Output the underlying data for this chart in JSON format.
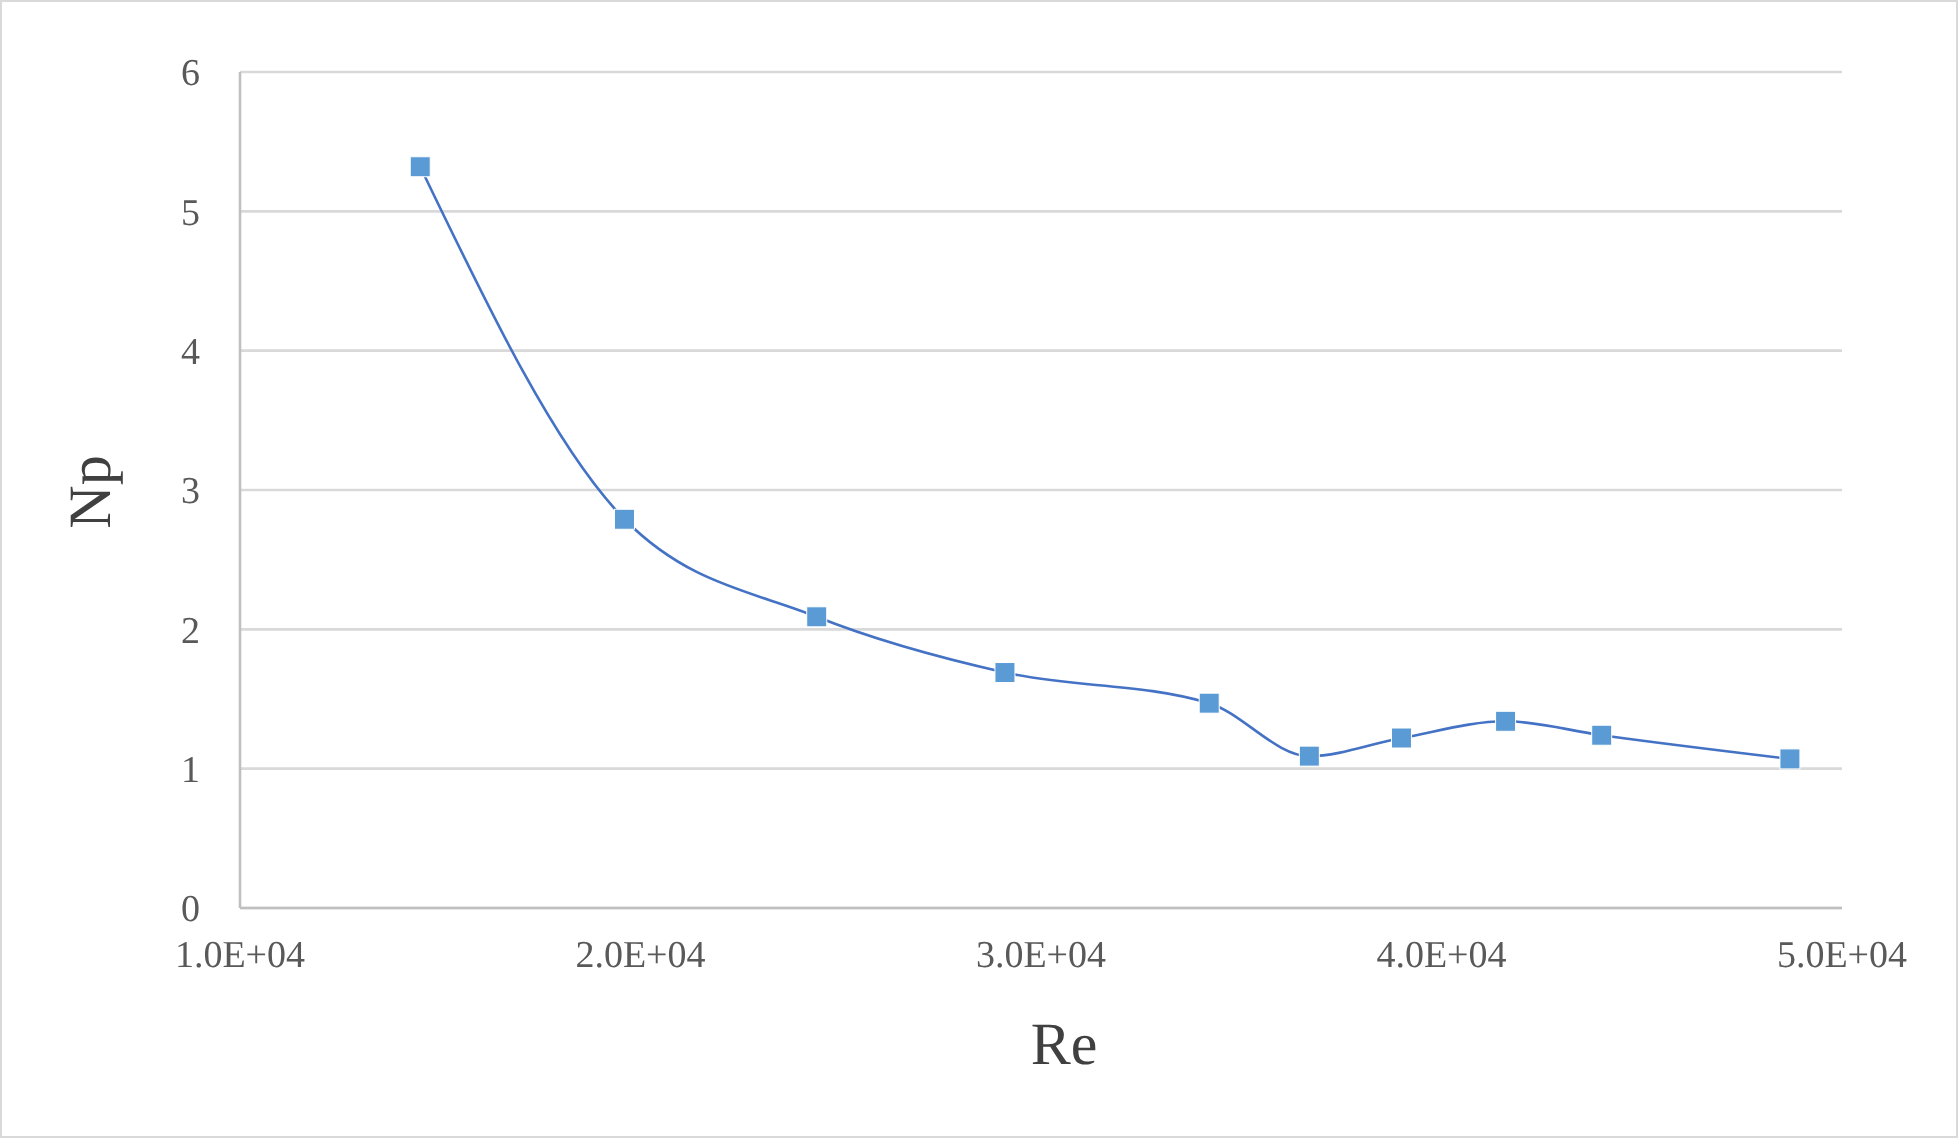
{
  "chart_data": {
    "type": "line",
    "xlabel": "Re",
    "ylabel": "Np",
    "x": [
      14500,
      19600,
      24400,
      29100,
      34200,
      36700,
      39000,
      41600,
      44000,
      48700
    ],
    "series": [
      {
        "color": "#5b9bd5",
        "values": [
          5.32,
          2.79,
          2.09,
          1.69,
          1.47,
          1.09,
          1.22,
          1.34,
          1.24,
          1.07
        ]
      }
    ],
    "xlim": [
      10000,
      50000
    ],
    "xticks": [
      {
        "value": 10000,
        "label": "1.0E+04"
      },
      {
        "value": 20000,
        "label": "2.0E+04"
      },
      {
        "value": 30000,
        "label": "3.0E+04"
      },
      {
        "value": 40000,
        "label": "4.0E+04"
      },
      {
        "value": 50000,
        "label": "5.0E+04"
      }
    ],
    "ylim": [
      0,
      6
    ],
    "yticks": [
      0,
      1,
      2,
      3,
      4,
      5,
      6
    ],
    "grid": "y",
    "marker": "square",
    "line_style": "solid"
  }
}
